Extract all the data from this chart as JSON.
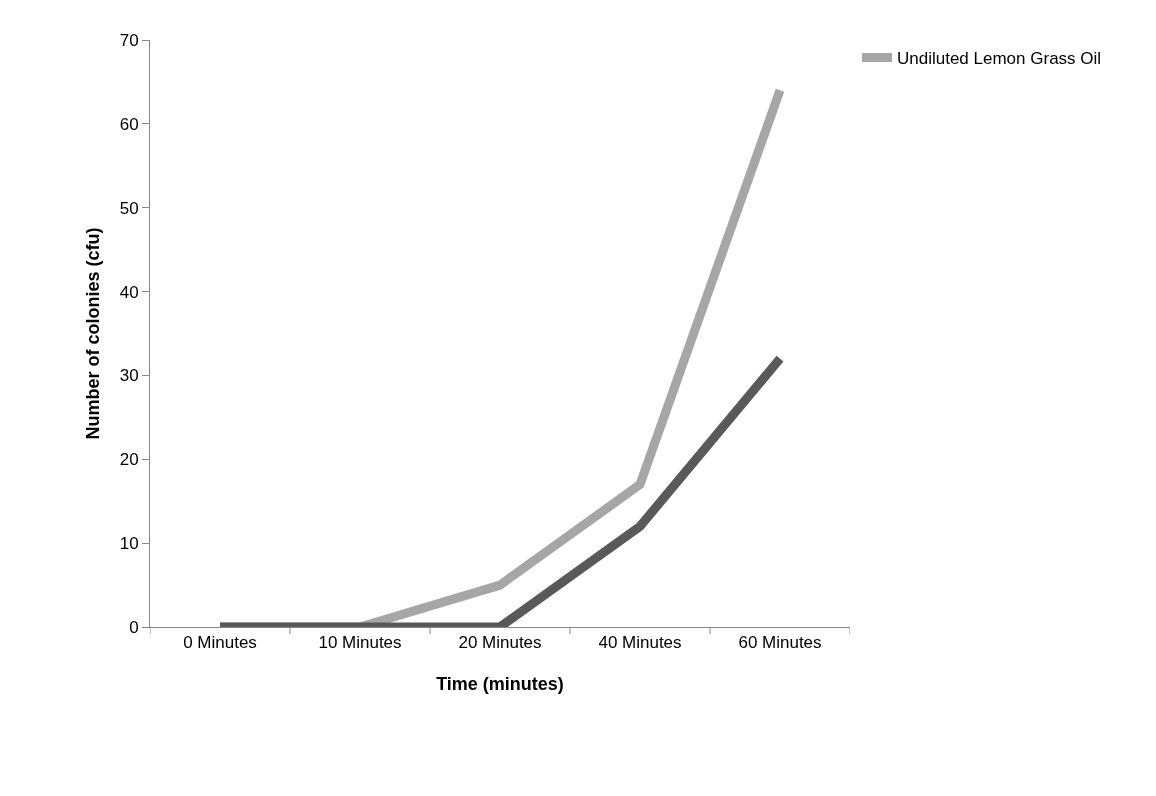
{
  "chart_data": {
    "type": "line",
    "xlabel": "Time (minutes)",
    "ylabel": "Number of colonies (cfu)",
    "categories": [
      "0 Minutes",
      "10 Minutes",
      "20 Minutes",
      "40 Minutes",
      "60 Minutes"
    ],
    "series": [
      {
        "name": "Undiluted Lemon Grass Oil",
        "color": "#a6a6a6",
        "values": [
          0,
          0,
          5,
          17,
          64
        ]
      },
      {
        "color": "#595959",
        "values": [
          0,
          0,
          0,
          12,
          32
        ]
      }
    ],
    "ylim": [
      0,
      70
    ],
    "yticks": [
      0,
      10,
      20,
      30,
      40,
      50,
      60,
      70
    ],
    "legend": "top right",
    "marker": "none",
    "line_style": "solid"
  }
}
